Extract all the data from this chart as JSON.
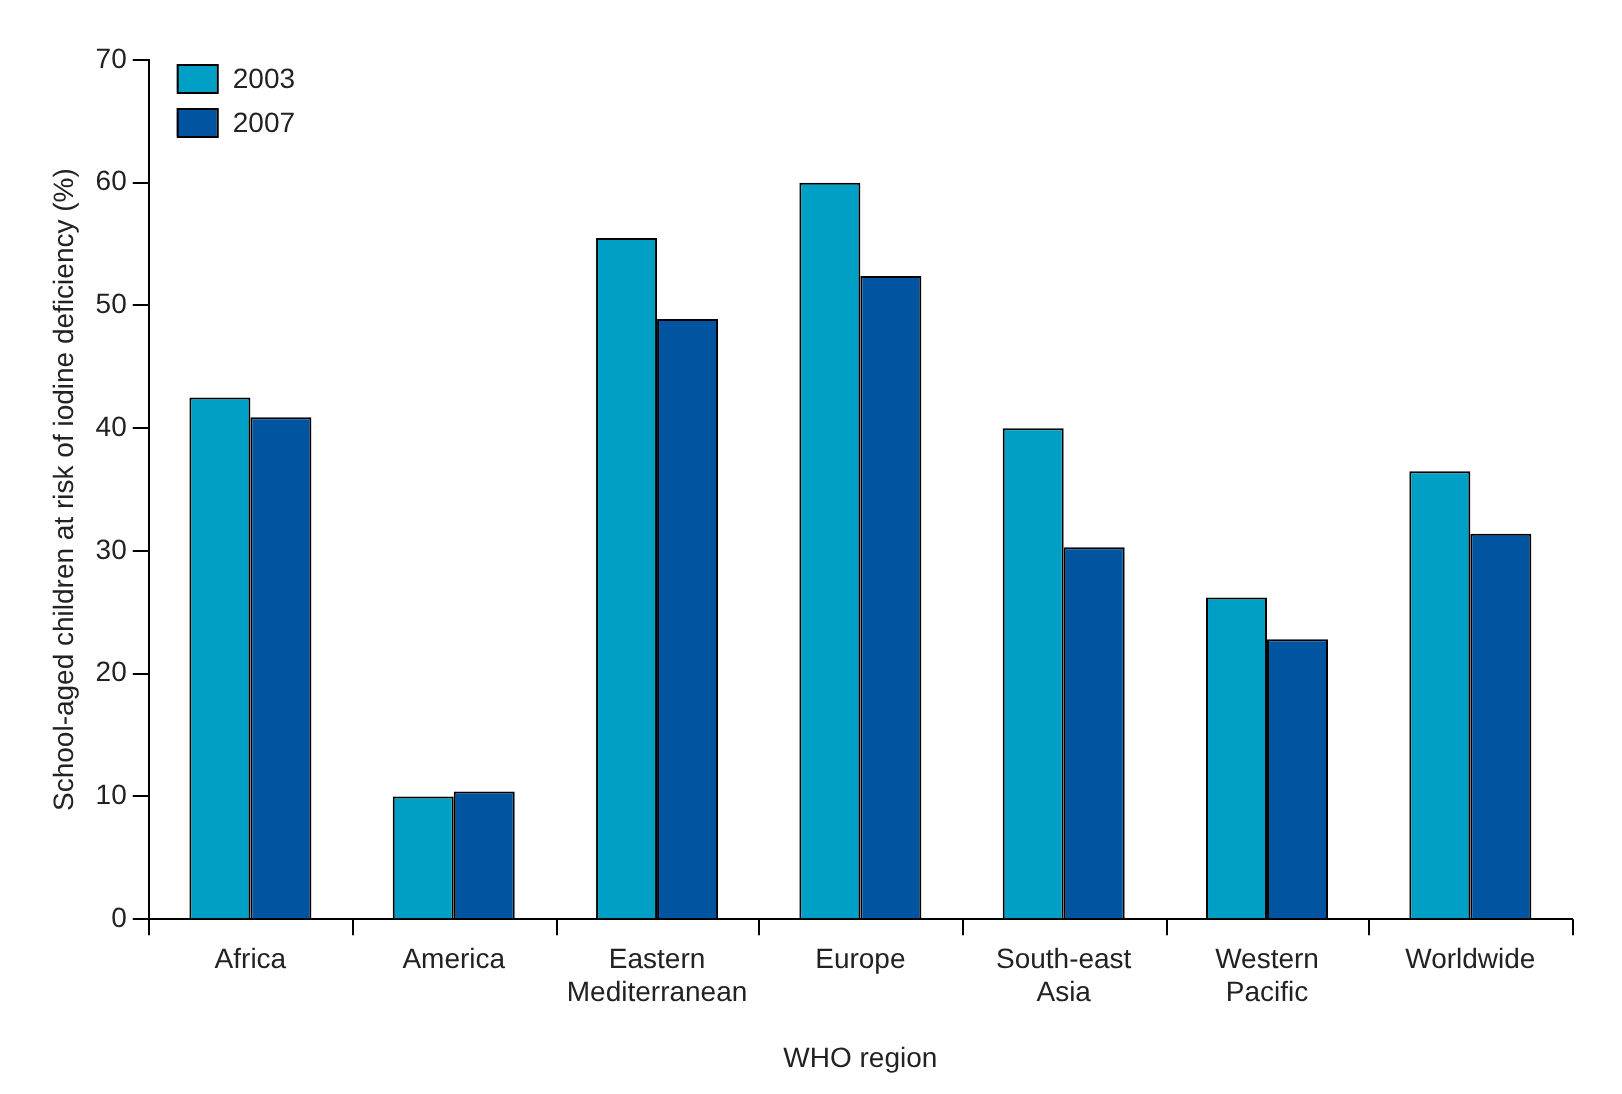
{
  "chart_data": {
    "type": "bar",
    "xlabel": "WHO region",
    "ylabel": "School-aged children at risk of iodine deficiency (%)",
    "categories": [
      "Africa",
      "America",
      "Eastern Mediterranean",
      "Europe",
      "South-east Asia",
      "Western Pacific",
      "Worldwide"
    ],
    "series": [
      {
        "name": "2003",
        "color": "#00a0c6",
        "values": [
          42.5,
          10,
          55.5,
          60,
          40,
          26.2,
          36.5
        ]
      },
      {
        "name": "2007",
        "color": "#0054a0",
        "values": [
          40.9,
          10.4,
          48.9,
          52.4,
          30.3,
          22.8,
          31.4
        ]
      }
    ],
    "ylim": [
      0,
      70
    ],
    "yticks": [
      0,
      10,
      20,
      30,
      40,
      50,
      60,
      70
    ],
    "grid": false,
    "legend": "top left"
  }
}
